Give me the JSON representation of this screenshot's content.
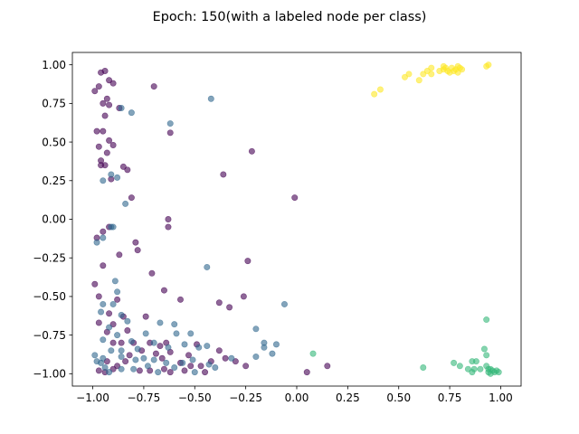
{
  "chart_data": {
    "type": "scatter",
    "title": "Epoch: 150(with a labeled node per class)",
    "xlabel": "",
    "ylabel": "",
    "xlim": [
      -1.1,
      1.1
    ],
    "ylim": [
      -1.08,
      1.08
    ],
    "xticks": [
      -1.0,
      -0.75,
      -0.5,
      -0.25,
      0.0,
      0.25,
      0.5,
      0.75,
      1.0
    ],
    "xtick_labels": [
      "−1.00",
      "−0.75",
      "−0.50",
      "−0.25",
      "0.00",
      "0.25",
      "0.50",
      "0.75",
      "1.00"
    ],
    "yticks": [
      -1.0,
      -0.75,
      -0.5,
      -0.25,
      0.0,
      0.25,
      0.5,
      0.75,
      1.0
    ],
    "ytick_labels": [
      "−1.00",
      "−0.75",
      "−0.50",
      "−0.25",
      "0.00",
      "0.25",
      "0.50",
      "0.75",
      "1.00"
    ],
    "grid": false,
    "legend": "none",
    "marker_alpha": 0.6,
    "series": [
      {
        "color": "#440154",
        "points": [
          [
            -0.96,
            0.95
          ],
          [
            -0.94,
            0.96
          ],
          [
            -0.92,
            0.9
          ],
          [
            -0.97,
            0.86
          ],
          [
            -0.9,
            0.88
          ],
          [
            -0.99,
            0.83
          ],
          [
            -0.95,
            0.75
          ],
          [
            -0.93,
            0.78
          ],
          [
            -0.92,
            0.74
          ],
          [
            -0.94,
            0.67
          ],
          [
            -0.87,
            0.72
          ],
          [
            -0.98,
            0.57
          ],
          [
            -0.95,
            0.57
          ],
          [
            -0.92,
            0.51
          ],
          [
            -0.97,
            0.47
          ],
          [
            -0.9,
            0.48
          ],
          [
            -0.93,
            0.43
          ],
          [
            -0.96,
            0.38
          ],
          [
            -0.96,
            0.35
          ],
          [
            -0.94,
            0.35
          ],
          [
            -0.85,
            0.34
          ],
          [
            -0.83,
            0.32
          ],
          [
            -0.91,
            0.26
          ],
          [
            -0.81,
            0.14
          ],
          [
            -0.7,
            0.86
          ],
          [
            -0.62,
            0.56
          ],
          [
            -0.36,
            0.29
          ],
          [
            -0.22,
            0.44
          ],
          [
            -0.01,
            0.14
          ],
          [
            -0.95,
            -0.08
          ],
          [
            -0.98,
            -0.12
          ],
          [
            -0.92,
            -0.05
          ],
          [
            -0.63,
            0.0
          ],
          [
            -0.63,
            -0.05
          ],
          [
            -0.79,
            -0.15
          ],
          [
            -0.78,
            -0.2
          ],
          [
            -0.87,
            -0.23
          ],
          [
            -0.95,
            -0.3
          ],
          [
            -0.24,
            -0.27
          ],
          [
            -0.71,
            -0.35
          ],
          [
            -0.99,
            -0.42
          ],
          [
            -0.97,
            -0.5
          ],
          [
            -0.88,
            -0.52
          ],
          [
            -0.65,
            -0.46
          ],
          [
            -0.57,
            -0.52
          ],
          [
            -0.38,
            -0.54
          ],
          [
            -0.26,
            -0.5
          ],
          [
            -0.74,
            -0.63
          ],
          [
            -0.92,
            -0.61
          ],
          [
            -0.97,
            -0.67
          ],
          [
            -0.9,
            -0.68
          ],
          [
            -0.85,
            -0.63
          ],
          [
            -0.33,
            -0.57
          ],
          [
            -0.93,
            -0.73
          ],
          [
            -0.83,
            -0.72
          ],
          [
            -0.9,
            -0.8
          ],
          [
            -0.86,
            -0.8
          ],
          [
            -0.8,
            -0.8
          ],
          [
            -0.72,
            -0.8
          ],
          [
            -0.67,
            -0.82
          ],
          [
            -0.64,
            -0.8
          ],
          [
            -0.49,
            -0.81
          ],
          [
            -0.38,
            -0.85
          ],
          [
            -0.35,
            -0.9
          ],
          [
            -0.82,
            -0.88
          ],
          [
            -0.76,
            -0.85
          ],
          [
            -0.69,
            -0.87
          ],
          [
            -0.66,
            -0.9
          ],
          [
            -0.62,
            -0.86
          ],
          [
            -0.57,
            -0.93
          ],
          [
            -0.53,
            -0.88
          ],
          [
            -0.47,
            -0.95
          ],
          [
            -0.42,
            -0.92
          ],
          [
            -0.93,
            -0.92
          ],
          [
            -0.9,
            -0.97
          ],
          [
            -0.88,
            -0.95
          ],
          [
            -0.84,
            -0.92
          ],
          [
            -0.77,
            -0.98
          ],
          [
            -0.72,
            -0.98
          ],
          [
            -0.65,
            -0.97
          ],
          [
            -0.62,
            -0.99
          ],
          [
            -0.55,
            -0.98
          ],
          [
            -0.52,
            -0.95
          ],
          [
            -0.45,
            -0.99
          ],
          [
            -0.3,
            -0.92
          ],
          [
            0.05,
            -0.99
          ],
          [
            0.15,
            -0.95
          ],
          [
            -0.94,
            -0.99
          ],
          [
            -0.97,
            -0.98
          ],
          [
            -0.25,
            -0.95
          ]
        ]
      },
      {
        "color": "#31688e",
        "points": [
          [
            -0.86,
            0.72
          ],
          [
            -0.81,
            0.69
          ],
          [
            -0.42,
            0.78
          ],
          [
            -0.62,
            0.62
          ],
          [
            -0.91,
            0.29
          ],
          [
            -0.95,
            0.25
          ],
          [
            -0.88,
            0.27
          ],
          [
            -0.84,
            0.1
          ],
          [
            -0.91,
            -0.05
          ],
          [
            -0.9,
            -0.05
          ],
          [
            -0.98,
            -0.15
          ],
          [
            -0.95,
            -0.12
          ],
          [
            -0.44,
            -0.31
          ],
          [
            -0.89,
            -0.4
          ],
          [
            -0.88,
            -0.47
          ],
          [
            -0.95,
            -0.55
          ],
          [
            -0.9,
            -0.55
          ],
          [
            -0.06,
            -0.55
          ],
          [
            -0.96,
            -0.6
          ],
          [
            -0.86,
            -0.62
          ],
          [
            -0.83,
            -0.66
          ],
          [
            -0.67,
            -0.67
          ],
          [
            -0.6,
            -0.68
          ],
          [
            -0.52,
            -0.74
          ],
          [
            -0.92,
            -0.7
          ],
          [
            -0.88,
            -0.75
          ],
          [
            -0.81,
            -0.79
          ],
          [
            -0.74,
            -0.74
          ],
          [
            -0.59,
            -0.74
          ],
          [
            -0.2,
            -0.71
          ],
          [
            -0.95,
            -0.78
          ],
          [
            -0.86,
            -0.85
          ],
          [
            -0.78,
            -0.84
          ],
          [
            -0.7,
            -0.8
          ],
          [
            -0.63,
            -0.83
          ],
          [
            -0.55,
            -0.81
          ],
          [
            -0.48,
            -0.83
          ],
          [
            -0.44,
            -0.82
          ],
          [
            -0.1,
            -0.81
          ],
          [
            -0.16,
            -0.8
          ],
          [
            -0.16,
            -0.83
          ],
          [
            -0.99,
            -0.88
          ],
          [
            -0.95,
            -0.9
          ],
          [
            -0.91,
            -0.85
          ],
          [
            -0.86,
            -0.89
          ],
          [
            -0.79,
            -0.91
          ],
          [
            -0.75,
            -0.9
          ],
          [
            -0.7,
            -0.91
          ],
          [
            -0.64,
            -0.93
          ],
          [
            -0.6,
            -0.96
          ],
          [
            -0.56,
            -0.93
          ],
          [
            -0.51,
            -0.91
          ],
          [
            -0.43,
            -0.94
          ],
          [
            -0.4,
            -0.96
          ],
          [
            -0.12,
            -0.87
          ],
          [
            -0.2,
            -0.89
          ],
          [
            -0.98,
            -0.92
          ],
          [
            -0.94,
            -0.96
          ],
          [
            -0.92,
            -0.99
          ],
          [
            -0.86,
            -0.97
          ],
          [
            -0.8,
            -0.97
          ],
          [
            -0.73,
            -0.95
          ],
          [
            -0.68,
            -0.99
          ],
          [
            -0.5,
            -0.99
          ],
          [
            -0.32,
            -0.9
          ],
          [
            -0.96,
            -0.93
          ]
        ]
      },
      {
        "color": "#35b779",
        "points": [
          [
            0.08,
            -0.87
          ],
          [
            0.62,
            -0.96
          ],
          [
            0.77,
            -0.93
          ],
          [
            0.8,
            -0.95
          ],
          [
            0.84,
            -0.97
          ],
          [
            0.86,
            -0.92
          ],
          [
            0.87,
            -0.97
          ],
          [
            0.88,
            -0.92
          ],
          [
            0.86,
            -0.99
          ],
          [
            0.9,
            -0.97
          ],
          [
            0.92,
            -0.84
          ],
          [
            0.93,
            -0.65
          ],
          [
            0.93,
            -0.88
          ],
          [
            0.93,
            -0.95
          ],
          [
            0.94,
            -0.99
          ],
          [
            0.95,
            -0.97
          ],
          [
            0.96,
            -0.98
          ],
          [
            0.97,
            -0.99
          ],
          [
            0.98,
            -0.98
          ],
          [
            0.99,
            -0.99
          ],
          [
            0.94,
            -0.97
          ],
          [
            0.95,
            -1.0
          ]
        ]
      },
      {
        "color": "#fde725",
        "points": [
          [
            0.38,
            0.81
          ],
          [
            0.41,
            0.84
          ],
          [
            0.53,
            0.92
          ],
          [
            0.55,
            0.94
          ],
          [
            0.6,
            0.9
          ],
          [
            0.62,
            0.94
          ],
          [
            0.64,
            0.96
          ],
          [
            0.66,
            0.94
          ],
          [
            0.66,
            0.98
          ],
          [
            0.7,
            0.96
          ],
          [
            0.72,
            0.97
          ],
          [
            0.73,
            0.98
          ],
          [
            0.74,
            0.96
          ],
          [
            0.75,
            0.95
          ],
          [
            0.76,
            0.98
          ],
          [
            0.77,
            0.96
          ],
          [
            0.78,
            0.97
          ],
          [
            0.79,
            0.95
          ],
          [
            0.8,
            0.98
          ],
          [
            0.81,
            0.97
          ],
          [
            0.93,
            0.99
          ],
          [
            0.94,
            1.0
          ],
          [
            0.79,
            0.99
          ],
          [
            0.72,
            0.99
          ]
        ]
      }
    ]
  }
}
